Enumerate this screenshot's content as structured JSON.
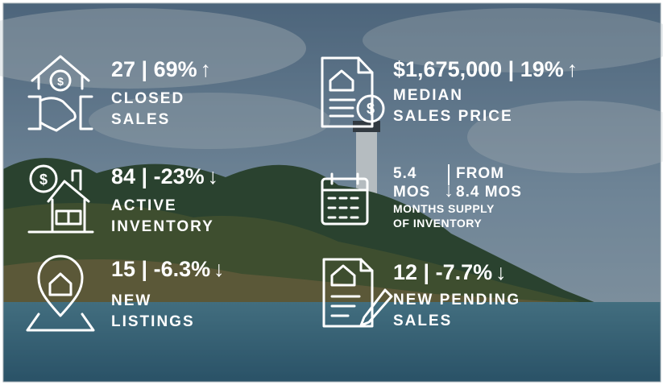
{
  "stats": [
    {
      "headline": "27 | 69%",
      "arrow": "↑",
      "label": [
        "CLOSED",
        "SALES"
      ]
    },
    {
      "headline": "$1,675,000 | 19%",
      "arrow": "↑",
      "label": [
        "MEDIAN",
        "SALES PRICE"
      ]
    },
    {
      "headline": "84 | -23%",
      "arrow": "↓",
      "label": [
        "ACTIVE",
        "INVENTORY"
      ]
    },
    {
      "headline": "15 | -6.3%",
      "arrow": "↓",
      "label": [
        "NEW",
        "LISTINGS"
      ]
    },
    {
      "headline": "12 | -7.7%",
      "arrow": "↓",
      "label": [
        "NEW PENDING",
        "SALES"
      ]
    }
  ],
  "supply": {
    "current": [
      "5.4",
      "MOS"
    ],
    "arrow": "↓",
    "previous": [
      "FROM",
      "8.4 MOS"
    ],
    "label": [
      "MONTHS SUPPLY",
      "OF INVENTORY"
    ]
  }
}
